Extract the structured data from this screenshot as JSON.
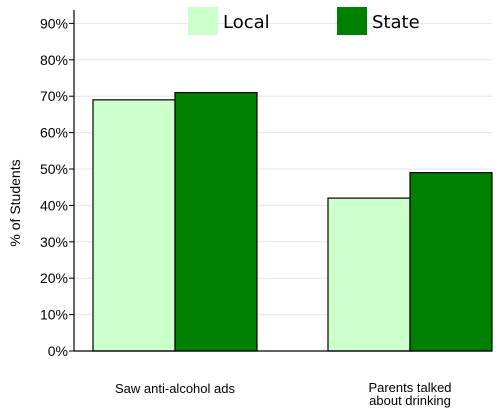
{
  "chart_data": {
    "type": "bar",
    "title": "",
    "xlabel": "",
    "ylabel": "% of Students",
    "ylim": [
      0,
      95
    ],
    "yticks": [
      0,
      10,
      20,
      30,
      40,
      50,
      60,
      70,
      80,
      90
    ],
    "ytick_labels": [
      "0%",
      "10%",
      "20%",
      "30%",
      "40%",
      "50%",
      "60%",
      "70%",
      "80%",
      "90%"
    ],
    "grid": true,
    "legend_position": "top",
    "categories": [
      [
        "Saw anti-alcohol ads"
      ],
      [
        "Parents talked",
        "about drinking"
      ]
    ],
    "series": [
      {
        "name": "Local",
        "color": "#ccffcc",
        "values": [
          69,
          42
        ]
      },
      {
        "name": "State",
        "color": "#008000",
        "values": [
          71,
          49
        ]
      }
    ]
  }
}
